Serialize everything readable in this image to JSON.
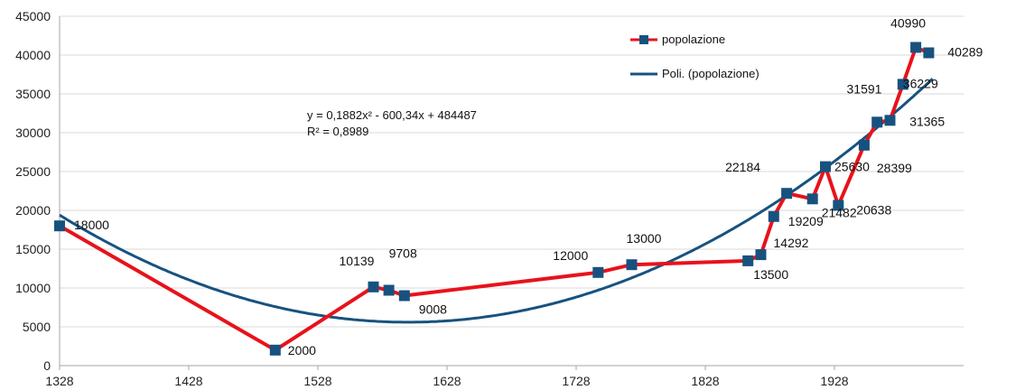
{
  "chart_data": {
    "type": "line",
    "title": "",
    "xlabel": "",
    "ylabel": "",
    "xlim": [
      1328,
      2028
    ],
    "ylim": [
      0,
      45000
    ],
    "x_ticks": [
      "1328",
      "1428",
      "1528",
      "1628",
      "1728",
      "1828",
      "1928"
    ],
    "y_ticks": [
      "0",
      "5000",
      "10000",
      "15000",
      "20000",
      "25000",
      "30000",
      "35000",
      "40000",
      "45000"
    ],
    "grid": "horizontal",
    "legend_position": "top-right",
    "colors": {
      "series": "#e8121b",
      "marker": "#17527f",
      "trend": "#17527f",
      "grid": "#d9d9d9"
    },
    "series": [
      {
        "name": "popolazione",
        "points": [
          {
            "x": 1328,
            "y": 18000,
            "label": "18000"
          },
          {
            "x": 1495,
            "y": 2000,
            "label": "2000"
          },
          {
            "x": 1571,
            "y": 10139,
            "label": "10139"
          },
          {
            "x": 1583,
            "y": 9708,
            "label": "9708"
          },
          {
            "x": 1595,
            "y": 9008,
            "label": "9008"
          },
          {
            "x": 1745,
            "y": 12000,
            "label": "12000"
          },
          {
            "x": 1771,
            "y": 13000,
            "label": "13000"
          },
          {
            "x": 1861,
            "y": 13500,
            "label": "13500"
          },
          {
            "x": 1871,
            "y": 14292,
            "label": "14292"
          },
          {
            "x": 1881,
            "y": 19209,
            "label": "19209"
          },
          {
            "x": 1891,
            "y": 22184,
            "label": "22184"
          },
          {
            "x": 1911,
            "y": 21482,
            "label": "21482"
          },
          {
            "x": 1921,
            "y": 25630,
            "label": "25630"
          },
          {
            "x": 1931,
            "y": 20638,
            "label": "20638"
          },
          {
            "x": 1951,
            "y": 28399,
            "label": "28399"
          },
          {
            "x": 1961,
            "y": 31365,
            "label": "31365"
          },
          {
            "x": 1971,
            "y": 31591,
            "label": "31591"
          },
          {
            "x": 1981,
            "y": 36229,
            "label": "36229"
          },
          {
            "x": 1991,
            "y": 40990,
            "label": "40990"
          },
          {
            "x": 2001,
            "y": 40289,
            "label": "40289"
          }
        ]
      },
      {
        "name": "Poli. (popolazione)",
        "trendline": "polynomial",
        "x_range": [
          1328,
          2005
        ]
      }
    ],
    "annotations": {
      "equation": "y = 0,1882x² - 600,34x + 484487",
      "r_squared": "R² = 0,8989"
    }
  }
}
